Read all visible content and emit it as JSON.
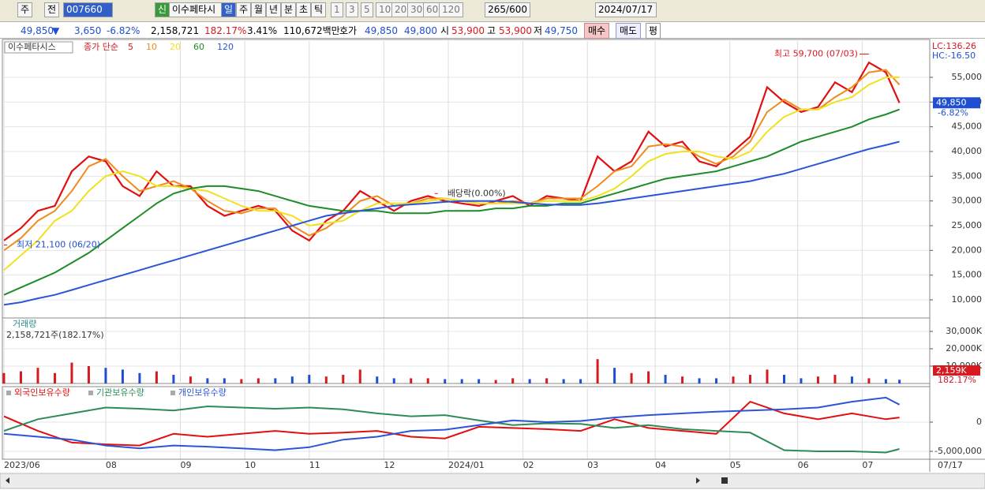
{
  "toolbar": {
    "market": "주",
    "prev": "전",
    "code": "007660",
    "name": "이수페타시",
    "new": "신",
    "periods": [
      "일",
      "주",
      "월",
      "년",
      "분",
      "초",
      "틱"
    ],
    "intervals": [
      "1",
      "3",
      "5",
      "10",
      "20",
      "30",
      "60",
      "120"
    ],
    "count": 265,
    "max": "/600",
    "date": "2024/07/17"
  },
  "quote_bar": {
    "price": "49,850",
    "arrow": "▼",
    "change": "3,650",
    "rate": "-6.82%",
    "volume": "2,158,721",
    "volume_ratio": "182.17%",
    "turnover": "3.41%",
    "amount": "110,672백만",
    "ask_label": "호가",
    "ask": "49,850",
    "bid": "49,800",
    "open_label": "시",
    "open": "53,900",
    "high_label": "고",
    "high": "53,900",
    "low_label": "저",
    "low": "49,750",
    "buy": "매수",
    "sell": "매도",
    "avg": "평"
  },
  "chart_data": [
    {
      "type": "line",
      "title": "이수페타시스",
      "legend_title": "종가 단순",
      "lc": "LC:136.26",
      "hc": "HC:-16.50",
      "price_tag": "49,850",
      "change_tag": "-6.82%",
      "x": [
        0,
        5,
        10,
        15,
        20,
        25,
        30,
        35,
        40,
        45,
        50,
        55,
        60,
        65,
        70,
        75,
        80,
        85,
        90,
        95,
        100,
        105,
        110,
        115,
        120,
        125,
        130,
        135,
        140,
        145,
        150,
        155,
        160,
        165,
        170,
        175,
        180,
        185,
        190,
        195,
        200,
        205,
        210,
        215,
        220,
        225,
        230,
        235,
        240,
        245,
        250,
        255,
        260,
        264
      ],
      "xlim": [
        0,
        272
      ],
      "xticks": [
        {
          "value": 0,
          "label": "2023/06"
        },
        {
          "value": 30,
          "label": "08"
        },
        {
          "value": 52,
          "label": "09"
        },
        {
          "value": 71,
          "label": "10"
        },
        {
          "value": 90,
          "label": "11"
        },
        {
          "value": 112,
          "label": "12"
        },
        {
          "value": 131,
          "label": "2024/01"
        },
        {
          "value": 153,
          "label": "02"
        },
        {
          "value": 172,
          "label": "03"
        },
        {
          "value": 192,
          "label": "04"
        },
        {
          "value": 214,
          "label": "05"
        },
        {
          "value": 234,
          "label": "06"
        },
        {
          "value": 253,
          "label": "07"
        }
      ],
      "x_last_label": "07/17",
      "ylim": [
        6330,
        62340
      ],
      "yticks": [
        {
          "value": 10000,
          "label": "10,000"
        },
        {
          "value": 15000,
          "label": "15,000"
        },
        {
          "value": 20000,
          "label": "20,000"
        },
        {
          "value": 25000,
          "label": "25,000"
        },
        {
          "value": 30000,
          "label": "30,000"
        },
        {
          "value": 35000,
          "label": "35,000"
        },
        {
          "value": 40000,
          "label": "40,000"
        },
        {
          "value": 45000,
          "label": "45,000"
        },
        {
          "value": 50000,
          "label": "50,000"
        },
        {
          "value": 55000,
          "label": "55,000"
        }
      ],
      "grid": true,
      "series": [
        {
          "name": "5",
          "color": "#e01010",
          "values": [
            22000,
            24500,
            28000,
            29000,
            36000,
            39000,
            38000,
            33000,
            31000,
            36000,
            33000,
            33000,
            29000,
            27000,
            28000,
            29000,
            28000,
            24000,
            22000,
            26000,
            28000,
            32000,
            30000,
            28000,
            30000,
            31000,
            30000,
            29500,
            29000,
            30000,
            31000,
            29000,
            31000,
            30500,
            30000,
            39000,
            36000,
            38000,
            44000,
            41000,
            42000,
            38000,
            37000,
            40000,
            43000,
            53000,
            50000,
            48000,
            49000,
            54000,
            52000,
            58000,
            56000,
            49850
          ]
        },
        {
          "name": "10",
          "color": "#f08c1e",
          "values": [
            20000,
            22500,
            26000,
            28000,
            32000,
            37000,
            38500,
            35000,
            32000,
            33000,
            34000,
            32500,
            30000,
            28000,
            27500,
            28500,
            28500,
            25000,
            23000,
            24500,
            27000,
            30000,
            31000,
            29000,
            29500,
            30500,
            30500,
            30000,
            29500,
            29500,
            30000,
            29500,
            30500,
            30500,
            30500,
            33000,
            36000,
            37000,
            41000,
            41500,
            41000,
            39000,
            37500,
            39000,
            42000,
            48000,
            50500,
            48500,
            48500,
            51000,
            53000,
            56000,
            56500,
            53500
          ]
        },
        {
          "name": "20",
          "color": "#f0e21e",
          "values": [
            16000,
            19000,
            22000,
            26000,
            28000,
            32000,
            35000,
            36000,
            35000,
            33000,
            33000,
            32500,
            32000,
            30500,
            29000,
            28000,
            28000,
            27000,
            25000,
            25500,
            26000,
            28000,
            29500,
            29500,
            29500,
            30000,
            30500,
            30000,
            29500,
            29500,
            29500,
            29500,
            30000,
            30000,
            30000,
            31000,
            32500,
            35000,
            38000,
            39500,
            40000,
            40000,
            39000,
            38500,
            40000,
            44000,
            47000,
            48500,
            48500,
            50000,
            51000,
            53500,
            55000,
            55000
          ]
        },
        {
          "name": "60",
          "color": "#1e8c28",
          "values": [
            11000,
            12500,
            14000,
            15500,
            17500,
            19500,
            22000,
            24500,
            27000,
            29500,
            31500,
            32500,
            33000,
            33000,
            32500,
            32000,
            31000,
            30000,
            29000,
            28500,
            28000,
            28000,
            28000,
            27500,
            27500,
            27500,
            28000,
            28000,
            28000,
            28500,
            28500,
            29000,
            29000,
            29500,
            29500,
            30500,
            31500,
            32500,
            33500,
            34500,
            35000,
            35500,
            36000,
            37000,
            38000,
            39000,
            40500,
            42000,
            43000,
            44000,
            45000,
            46500,
            47500,
            48500
          ]
        },
        {
          "name": "120",
          "color": "#2b55d6",
          "values": [
            9000,
            9500,
            10300,
            11000,
            12000,
            13000,
            14000,
            15000,
            16000,
            17000,
            18000,
            19000,
            20000,
            21000,
            22000,
            23000,
            24000,
            25000,
            26000,
            27000,
            27500,
            28000,
            28500,
            29000,
            29300,
            29500,
            29800,
            30000,
            30000,
            30000,
            29800,
            29500,
            29300,
            29200,
            29200,
            29500,
            30000,
            30500,
            31000,
            31500,
            32000,
            32500,
            33000,
            33500,
            34000,
            34800,
            35500,
            36500,
            37500,
            38500,
            39500,
            40500,
            41300,
            42000
          ]
        }
      ],
      "annotations": [
        {
          "text": "최고 59,700 (07/03)",
          "x": 255,
          "y": 59700
        },
        {
          "text": "최저 21,100 (06/20)",
          "x": 0,
          "y": 21100
        },
        {
          "text": "배당락(0.00%)",
          "x": 127,
          "y": 31500
        }
      ]
    },
    {
      "type": "bar",
      "title": "거래량",
      "subtitle": "2,158,721주(182.17%)",
      "volume_tag": "2,159K",
      "ratio_tag": "182.17%",
      "up_color": "#d71920",
      "down_color": "#1f4fd0",
      "x": [
        0,
        5,
        10,
        15,
        20,
        25,
        30,
        35,
        40,
        45,
        50,
        55,
        60,
        65,
        70,
        75,
        80,
        85,
        90,
        95,
        100,
        105,
        110,
        115,
        120,
        125,
        130,
        135,
        140,
        145,
        150,
        155,
        160,
        165,
        170,
        175,
        180,
        185,
        190,
        195,
        200,
        205,
        210,
        215,
        220,
        225,
        230,
        235,
        240,
        245,
        250,
        255,
        260,
        264
      ],
      "xlim": [
        0,
        272
      ],
      "values": [
        6000,
        7000,
        9000,
        6000,
        12000,
        10000,
        9000,
        8000,
        6000,
        7000,
        5000,
        4000,
        3000,
        3000,
        2500,
        3000,
        3000,
        4000,
        5000,
        4000,
        5000,
        8000,
        4000,
        3000,
        3000,
        3000,
        2500,
        2500,
        2500,
        2000,
        3000,
        2500,
        3000,
        2500,
        2500,
        14000,
        9000,
        6000,
        7000,
        5000,
        4000,
        3000,
        3000,
        4000,
        5000,
        8000,
        5000,
        3000,
        4000,
        5000,
        4000,
        3000,
        2500,
        2159
      ],
      "ylim": [
        0,
        36800
      ],
      "yticks": [
        {
          "value": 10000,
          "label": "10,000K"
        },
        {
          "value": 20000,
          "label": "20,000K"
        },
        {
          "value": 30000,
          "label": "30,000K"
        }
      ]
    },
    {
      "type": "line",
      "x": [
        0,
        10,
        20,
        30,
        40,
        50,
        60,
        70,
        80,
        90,
        100,
        110,
        120,
        130,
        140,
        150,
        160,
        170,
        180,
        190,
        200,
        210,
        220,
        230,
        240,
        250,
        260,
        264
      ],
      "xlim": [
        0,
        272
      ],
      "ylim": [
        -6350000,
        5810000
      ],
      "yticks": [
        0,
        {
          "value": -5000000,
          "label": "-5,000,000"
        }
      ],
      "series": [
        {
          "name": "외국인보유수량",
          "color": "#e01010",
          "values": [
            1000000,
            -1500000,
            -3500000,
            -3800000,
            -4000000,
            -2000000,
            -2500000,
            -2000000,
            -1500000,
            -2000000,
            -1800000,
            -1500000,
            -2500000,
            -2800000,
            -800000,
            -1000000,
            -1200000,
            -1500000,
            500000,
            -1000000,
            -1500000,
            -2000000,
            3500000,
            1500000,
            500000,
            1500000,
            500000,
            800000
          ]
        },
        {
          "name": "기관보유수량",
          "color": "#2e8b57",
          "values": [
            -1500000,
            500000,
            1500000,
            2500000,
            2300000,
            2000000,
            2700000,
            2500000,
            2300000,
            2500000,
            2200000,
            1500000,
            1000000,
            1200000,
            300000,
            -500000,
            -200000,
            -300000,
            -1000000,
            -500000,
            -1200000,
            -1500000,
            -1800000,
            -4800000,
            -5000000,
            -5000000,
            -5200000,
            -4600000
          ]
        },
        {
          "name": "개인보유수량",
          "color": "#2b55d6",
          "values": [
            -2000000,
            -2500000,
            -3000000,
            -4000000,
            -4500000,
            -4000000,
            -4200000,
            -4500000,
            -4800000,
            -4300000,
            -3000000,
            -2500000,
            -1500000,
            -1300000,
            -500000,
            300000,
            0,
            200000,
            800000,
            1200000,
            1500000,
            1800000,
            2000000,
            2200000,
            2500000,
            3500000,
            4200000,
            3000000
          ]
        }
      ]
    }
  ]
}
